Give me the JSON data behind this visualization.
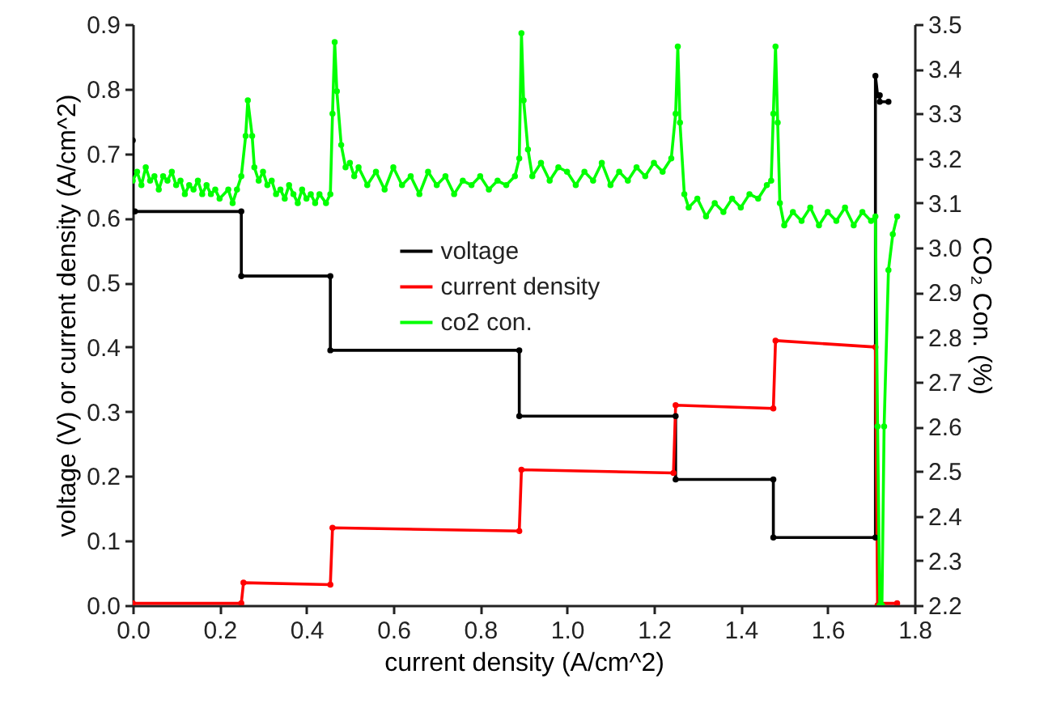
{
  "chart_data": {
    "type": "line",
    "xlabel": "current density (A/cm^2)",
    "ylabel": "voltage (V) or current density (A/cm^2)",
    "y2label": "CO₂ Con. (%)",
    "xlim": [
      0,
      1.8
    ],
    "xticks": [
      {
        "value": 0,
        "label": "0.0"
      },
      0.2,
      0.4,
      0.6,
      0.8,
      {
        "value": 1,
        "label": "1.0"
      },
      1.2,
      1.4,
      1.6,
      1.8
    ],
    "ylim": [
      0,
      0.9
    ],
    "yticks": [
      {
        "value": 0,
        "label": "0.0"
      },
      0.1,
      0.2,
      0.3,
      0.4,
      0.5,
      0.6,
      0.7,
      0.8,
      0.9
    ],
    "y2lim": [
      2.2,
      3.5
    ],
    "y2ticks": [
      2.2,
      2.3,
      2.4,
      2.5,
      2.6,
      2.7,
      2.8,
      2.9,
      {
        "value": 3,
        "label": "3.0"
      },
      3.1,
      3.2,
      3.3,
      3.4,
      3.5
    ],
    "legend": "top",
    "marker": "circle",
    "grid": false,
    "series": [
      {
        "name": "voltage",
        "color": "#000000",
        "x": [
          0,
          0,
          0.005,
          0.25,
          0.25,
          0.455,
          0.455,
          0.89,
          0.89,
          1.25,
          1.25,
          1.475,
          1.475,
          1.71,
          1.71,
          1.715,
          1.72,
          1.72,
          1.74
        ],
        "values": [
          0.72,
          0.61,
          0.61,
          0.61,
          0.51,
          0.51,
          0.395,
          0.395,
          0.293,
          0.293,
          0.195,
          0.195,
          0.105,
          0.105,
          0.82,
          0.79,
          0.79,
          0.78,
          0.78
        ]
      },
      {
        "name": "current density",
        "color": "#ff0000",
        "x": [
          0,
          0.25,
          0.255,
          0.455,
          0.46,
          0.89,
          0.895,
          1.245,
          1.25,
          1.475,
          1.48,
          1.71,
          1.715,
          1.72,
          1.76
        ],
        "values": [
          0.003,
          0.003,
          0.035,
          0.032,
          0.12,
          0.115,
          0.21,
          0.205,
          0.31,
          0.305,
          0.41,
          0.4,
          0,
          0.003,
          0.003
        ]
      },
      {
        "name": "co2 con.",
        "color": "#00ff00",
        "axis": "y2",
        "x": [
          0,
          0.01,
          0.02,
          0.03,
          0.04,
          0.05,
          0.06,
          0.07,
          0.08,
          0.09,
          0.1,
          0.11,
          0.12,
          0.13,
          0.14,
          0.15,
          0.16,
          0.17,
          0.18,
          0.19,
          0.2,
          0.22,
          0.23,
          0.24,
          0.25,
          0.26,
          0.265,
          0.275,
          0.28,
          0.29,
          0.3,
          0.31,
          0.32,
          0.33,
          0.34,
          0.35,
          0.36,
          0.37,
          0.38,
          0.39,
          0.4,
          0.41,
          0.42,
          0.43,
          0.445,
          0.455,
          0.46,
          0.465,
          0.47,
          0.48,
          0.49,
          0.5,
          0.51,
          0.52,
          0.54,
          0.56,
          0.58,
          0.6,
          0.62,
          0.64,
          0.66,
          0.68,
          0.7,
          0.72,
          0.74,
          0.76,
          0.78,
          0.8,
          0.82,
          0.84,
          0.86,
          0.88,
          0.89,
          0.895,
          0.9,
          0.91,
          0.92,
          0.94,
          0.96,
          0.98,
          1,
          1.02,
          1.04,
          1.06,
          1.08,
          1.1,
          1.12,
          1.14,
          1.16,
          1.18,
          1.2,
          1.22,
          1.24,
          1.25,
          1.255,
          1.26,
          1.27,
          1.28,
          1.3,
          1.32,
          1.34,
          1.36,
          1.38,
          1.4,
          1.42,
          1.44,
          1.46,
          1.47,
          1.475,
          1.48,
          1.485,
          1.49,
          1.5,
          1.52,
          1.54,
          1.56,
          1.58,
          1.6,
          1.62,
          1.64,
          1.66,
          1.68,
          1.7,
          1.71,
          1.715,
          1.72,
          1.725,
          1.73,
          1.74,
          1.75,
          1.76
        ],
        "values": [
          3.15,
          3.17,
          3.14,
          3.18,
          3.15,
          3.16,
          3.13,
          3.16,
          3.15,
          3.17,
          3.14,
          3.15,
          3.12,
          3.14,
          3.13,
          3.15,
          3.12,
          3.14,
          3.12,
          3.13,
          3.11,
          3.13,
          3.1,
          3.13,
          3.16,
          3.25,
          3.33,
          3.25,
          3.18,
          3.15,
          3.17,
          3.14,
          3.15,
          3.12,
          3.13,
          3.11,
          3.14,
          3.12,
          3.1,
          3.13,
          3.11,
          3.12,
          3.1,
          3.12,
          3.1,
          3.12,
          3.3,
          3.46,
          3.35,
          3.23,
          3.18,
          3.19,
          3.16,
          3.18,
          3.14,
          3.17,
          3.13,
          3.18,
          3.14,
          3.16,
          3.12,
          3.17,
          3.14,
          3.16,
          3.12,
          3.15,
          3.14,
          3.16,
          3.13,
          3.15,
          3.14,
          3.16,
          3.2,
          3.48,
          3.33,
          3.22,
          3.16,
          3.19,
          3.15,
          3.18,
          3.17,
          3.14,
          3.17,
          3.15,
          3.19,
          3.14,
          3.17,
          3.15,
          3.18,
          3.16,
          3.19,
          3.17,
          3.2,
          3.3,
          3.45,
          3.28,
          3.12,
          3.09,
          3.11,
          3.07,
          3.1,
          3.08,
          3.11,
          3.09,
          3.12,
          3.11,
          3.14,
          3.15,
          3.3,
          3.45,
          3.28,
          3.1,
          3.05,
          3.08,
          3.06,
          3.09,
          3.05,
          3.08,
          3.06,
          3.09,
          3.05,
          3.08,
          3.06,
          3.07,
          2.6,
          2.2,
          2.2,
          2.6,
          2.95,
          3.03,
          3.07
        ]
      }
    ]
  }
}
